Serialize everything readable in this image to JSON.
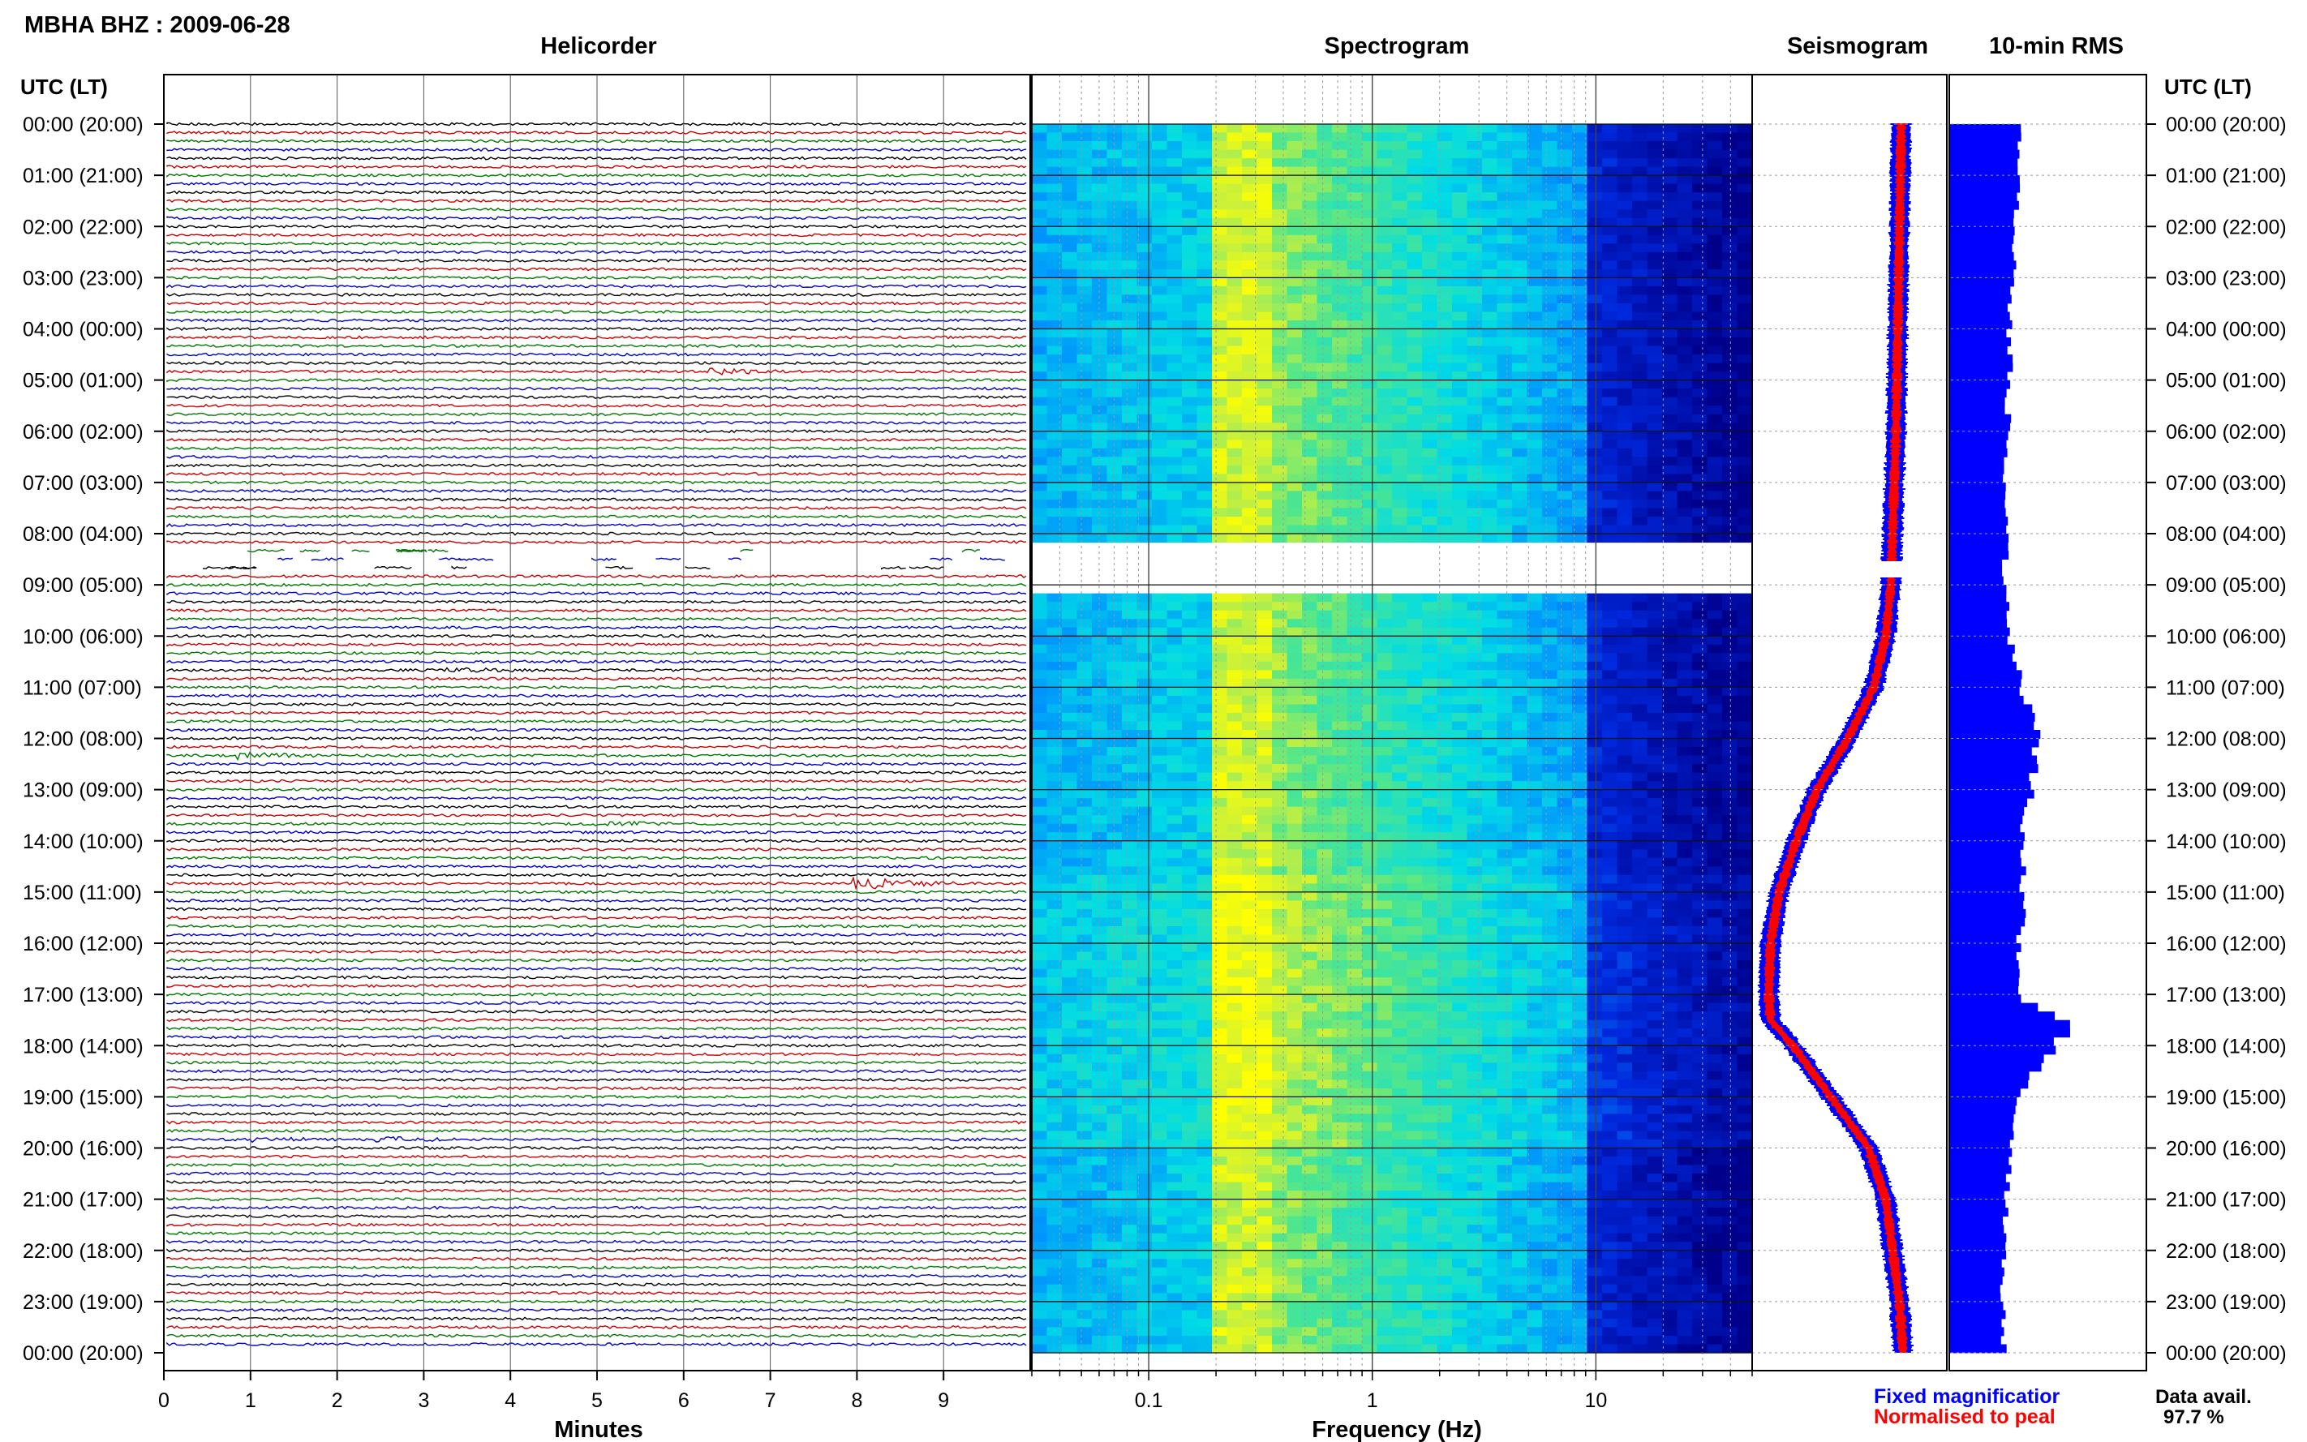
{
  "header": {
    "station_title": "MBHA BHZ : 2009-06-28",
    "panel_titles": [
      "Helicorder",
      "Spectrogram",
      "Seismogram",
      "10-min RMS"
    ],
    "time_axis_label_left": "UTC (LT)",
    "time_axis_label_right": "UTC (LT)"
  },
  "footer": {
    "helicorder_xlabel": "Minutes",
    "spectrogram_xlabel": "Frequency (Hz)",
    "legend_fixed": "Fixed magnificatior",
    "legend_normalised": "Normalised to peal",
    "availability_label": "Data avail.",
    "availability_value": "97.7 %"
  },
  "colors": {
    "trace_cycle": [
      "#000000",
      "#cc0000",
      "#007a00",
      "#0000cc"
    ],
    "fixed_magnification": "#0000ff",
    "normalised_to_peak": "#ff0000",
    "rms_bars": "#0000ff",
    "spectrogram_low": "#00008b",
    "spectrogram_high": "#ffff00",
    "gridline": "#9a9a9a"
  },
  "chart_data": [
    {
      "type": "line",
      "panel": "Helicorder",
      "xlabel": "Minutes",
      "xticks": [
        0,
        1,
        2,
        3,
        4,
        5,
        6,
        7,
        8,
        9
      ],
      "xlim": [
        0,
        10
      ],
      "row_minutes": 10,
      "rows": 144,
      "data_gap_hours": [
        8.2,
        8.8
      ],
      "events": [
        {
          "hour": 4.83,
          "minute": 6.3,
          "amplitude": 1.5,
          "color": "#cc0000"
        },
        {
          "hour": 10.67,
          "minute": 3.3,
          "amplitude": 1.2,
          "color": "#000000"
        },
        {
          "hour": 12.33,
          "minute": 0.9,
          "amplitude": 1.6,
          "color": "#0000cc"
        },
        {
          "hour": 13.67,
          "minute": 5.0,
          "amplitude": 1.3,
          "color": "#0000cc"
        },
        {
          "hour": 14.83,
          "minute": 8.0,
          "amplitude": 4.0,
          "color": "#cc0000"
        },
        {
          "hour": 19.83,
          "minute": 0.9,
          "amplitude": 1.5,
          "color": "#cc0000"
        },
        {
          "hour": 19.83,
          "minute": 2.5,
          "amplitude": 1.3,
          "color": "#cc0000"
        }
      ]
    },
    {
      "type": "heatmap",
      "panel": "Spectrogram",
      "xlabel": "Frequency (Hz)",
      "xscale": "log",
      "xlim": [
        0.03,
        50
      ],
      "xticks": [
        0.1,
        1,
        10
      ],
      "xticklabels": [
        "0.1",
        "1",
        "10"
      ],
      "peak_frequency_hz": 0.25,
      "data_gap_hours": [
        8.2,
        9.05
      ]
    },
    {
      "type": "line",
      "panel": "Seismogram",
      "series": [
        {
          "name": "Fixed magnificatior",
          "color": "#0000ff"
        },
        {
          "name": "Normalised to peal",
          "color": "#ff0000"
        }
      ],
      "hours": [
        0,
        2,
        4,
        6,
        8,
        9,
        10,
        11,
        12,
        13,
        14,
        15,
        16,
        17,
        17.5,
        18,
        19,
        20,
        21,
        22,
        23,
        24
      ],
      "center_level": [
        0.81,
        0.8,
        0.79,
        0.78,
        0.76,
        0.75,
        0.72,
        0.65,
        0.5,
        0.32,
        0.2,
        0.1,
        0.05,
        0.04,
        0.05,
        0.18,
        0.4,
        0.62,
        0.72,
        0.76,
        0.8,
        0.82
      ]
    },
    {
      "type": "bar",
      "panel": "10-min RMS",
      "orientation": "horizontal",
      "hours": [
        0,
        1,
        2,
        3,
        4,
        5,
        6,
        7,
        8,
        9,
        10,
        11,
        12,
        13,
        14,
        15,
        16,
        17,
        17.5,
        18,
        19,
        20,
        21,
        22,
        23,
        24
      ],
      "relative_rms": [
        0.62,
        0.58,
        0.55,
        0.52,
        0.5,
        0.5,
        0.48,
        0.47,
        0.47,
        0.46,
        0.5,
        0.6,
        0.74,
        0.68,
        0.6,
        0.62,
        0.58,
        0.56,
        1.0,
        0.9,
        0.55,
        0.5,
        0.47,
        0.45,
        0.44,
        0.45
      ]
    }
  ],
  "time_axis": {
    "tick_labels": [
      "00:00 (20:00)",
      "01:00 (21:00)",
      "02:00 (22:00)",
      "03:00 (23:00)",
      "04:00 (00:00)",
      "05:00 (01:00)",
      "06:00 (02:00)",
      "07:00 (03:00)",
      "08:00 (04:00)",
      "09:00 (05:00)",
      "10:00 (06:00)",
      "11:00 (07:00)",
      "12:00 (08:00)",
      "13:00 (09:00)",
      "14:00 (10:00)",
      "15:00 (11:00)",
      "16:00 (12:00)",
      "17:00 (13:00)",
      "18:00 (14:00)",
      "19:00 (15:00)",
      "20:00 (16:00)",
      "21:00 (17:00)",
      "22:00 (18:00)",
      "23:00 (19:00)",
      "00:00 (20:00)"
    ]
  }
}
